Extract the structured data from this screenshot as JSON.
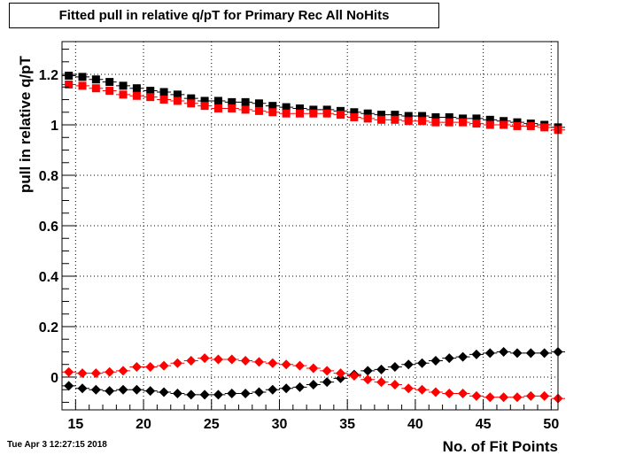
{
  "chart_data": {
    "type": "scatter",
    "title": "Fitted pull in relative q/pT for Primary Rec All NoHits",
    "xlabel": "No. of Fit Points",
    "ylabel": "pull in relative q/pT",
    "xlim": [
      14,
      50.5
    ],
    "ylim": [
      -0.13,
      1.33
    ],
    "xticks": [
      15,
      20,
      25,
      30,
      35,
      40,
      45,
      50
    ],
    "yticks": [
      0,
      0.2,
      0.4,
      0.6,
      0.8,
      1,
      1.2
    ],
    "grid": true,
    "legend": "none",
    "x": [
      14.5,
      15.5,
      16.5,
      17.5,
      18.5,
      19.5,
      20.5,
      21.5,
      22.5,
      23.5,
      24.5,
      25.5,
      26.5,
      27.5,
      28.5,
      29.5,
      30.5,
      31.5,
      32.5,
      33.5,
      34.5,
      35.5,
      36.5,
      37.5,
      38.5,
      39.5,
      40.5,
      41.5,
      42.5,
      43.5,
      44.5,
      45.5,
      46.5,
      47.5,
      48.5,
      49.5,
      50.5
    ],
    "series": [
      {
        "marker": "square",
        "color": "#000000",
        "values": [
          1.195,
          1.19,
          1.18,
          1.17,
          1.155,
          1.145,
          1.135,
          1.13,
          1.12,
          1.105,
          1.095,
          1.095,
          1.09,
          1.09,
          1.085,
          1.075,
          1.07,
          1.065,
          1.06,
          1.06,
          1.055,
          1.05,
          1.045,
          1.04,
          1.04,
          1.035,
          1.035,
          1.03,
          1.03,
          1.025,
          1.025,
          1.02,
          1.015,
          1.01,
          1.005,
          1.0,
          0.99
        ]
      },
      {
        "marker": "square",
        "color": "#ff0000",
        "values": [
          1.16,
          1.155,
          1.145,
          1.135,
          1.12,
          1.115,
          1.11,
          1.1,
          1.095,
          1.085,
          1.075,
          1.065,
          1.065,
          1.06,
          1.055,
          1.05,
          1.045,
          1.045,
          1.045,
          1.045,
          1.04,
          1.03,
          1.025,
          1.02,
          1.02,
          1.015,
          1.015,
          1.01,
          1.01,
          1.01,
          1.005,
          1.0,
          1.0,
          0.995,
          0.995,
          0.99,
          0.98
        ]
      },
      {
        "marker": "diamond",
        "color": "#000000",
        "values": [
          -0.035,
          -0.045,
          -0.05,
          -0.055,
          -0.05,
          -0.05,
          -0.055,
          -0.06,
          -0.065,
          -0.07,
          -0.07,
          -0.07,
          -0.065,
          -0.065,
          -0.06,
          -0.05,
          -0.045,
          -0.04,
          -0.03,
          -0.02,
          -0.005,
          0.01,
          0.025,
          0.03,
          0.04,
          0.05,
          0.055,
          0.065,
          0.075,
          0.08,
          0.09,
          0.095,
          0.1,
          0.095,
          0.095,
          0.095,
          0.1
        ]
      },
      {
        "marker": "diamond",
        "color": "#ff0000",
        "values": [
          0.02,
          0.015,
          0.015,
          0.02,
          0.025,
          0.04,
          0.04,
          0.045,
          0.055,
          0.065,
          0.075,
          0.07,
          0.07,
          0.065,
          0.06,
          0.055,
          0.05,
          0.045,
          0.035,
          0.025,
          0.015,
          0.005,
          -0.01,
          -0.02,
          -0.03,
          -0.045,
          -0.05,
          -0.06,
          -0.065,
          -0.065,
          -0.075,
          -0.08,
          -0.08,
          -0.08,
          -0.075,
          -0.075,
          -0.085
        ]
      }
    ]
  },
  "timestamp": "Tue Apr  3 12:27:15 2018"
}
